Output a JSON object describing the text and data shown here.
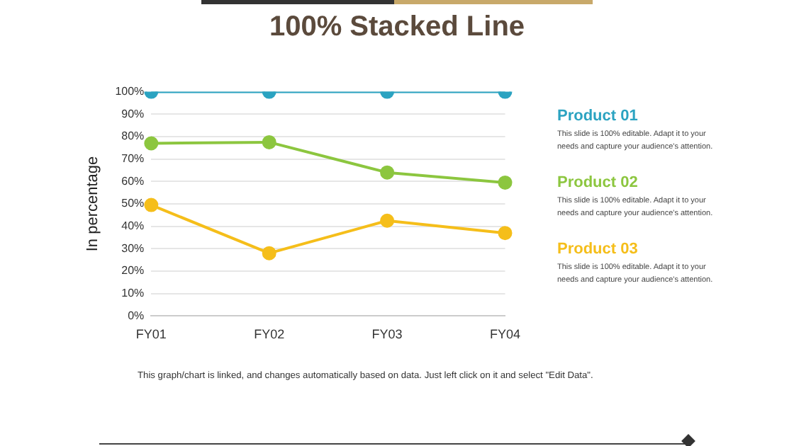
{
  "chart_data": {
    "type": "line",
    "title": "100% Stacked Line",
    "ylabel": "In percentage",
    "categories": [
      "FY01",
      "FY02",
      "FY03",
      "FY04"
    ],
    "series": [
      {
        "name": "Product 01",
        "color": "#2ba3c1",
        "values": [
          100,
          100,
          100,
          100
        ]
      },
      {
        "name": "Product 02",
        "color": "#8cc63f",
        "values": [
          77,
          77.5,
          64,
          59.5
        ]
      },
      {
        "name": "Product 03",
        "color": "#f5be1a",
        "values": [
          49.5,
          28,
          42.5,
          37
        ]
      }
    ],
    "ylim": [
      0,
      100
    ],
    "yticks": [
      {
        "value": 0,
        "label": "0%"
      },
      {
        "value": 10,
        "label": "10%"
      },
      {
        "value": 20,
        "label": "20%"
      },
      {
        "value": 30,
        "label": "30%"
      },
      {
        "value": 40,
        "label": "40%"
      },
      {
        "value": 50,
        "label": "50%"
      },
      {
        "value": 60,
        "label": "60%"
      },
      {
        "value": 70,
        "label": "70%"
      },
      {
        "value": 80,
        "label": "80%"
      },
      {
        "value": 90,
        "label": "90%"
      },
      {
        "value": 100,
        "label": "100%"
      }
    ],
    "grid": "y",
    "legend": "right",
    "marker": "circle",
    "line_style": "solid",
    "annotations": [
      "This slide is 100% editable. Adapt it to your needs and capture your audience's attention.",
      "This slide is 100% editable. Adapt it to your needs and capture your audience's attention.",
      "This slide is 100% editable. Adapt it to your needs and capture your audience's attention.",
      "This graph/chart is linked, and changes automatically based on data. Just left click on it and select \"Edit Data\"."
    ]
  }
}
